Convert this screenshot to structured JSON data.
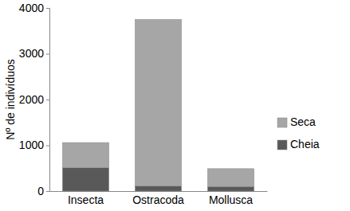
{
  "chart_data": {
    "type": "bar",
    "stacked": true,
    "y_label": "Nº de indivíduos",
    "categories": [
      "Insecta",
      "Ostracoda",
      "Mollusca"
    ],
    "series": [
      {
        "name": "Cheia",
        "color": "#595959",
        "values": [
          510,
          110,
          100
        ]
      },
      {
        "name": "Seca",
        "color": "#a6a6a6",
        "values": [
          550,
          3640,
          390
        ]
      }
    ],
    "ylim": [
      0,
      4000
    ],
    "yticks": [
      0,
      1000,
      2000,
      3000,
      4000
    ],
    "grid": false,
    "legend": "right"
  }
}
